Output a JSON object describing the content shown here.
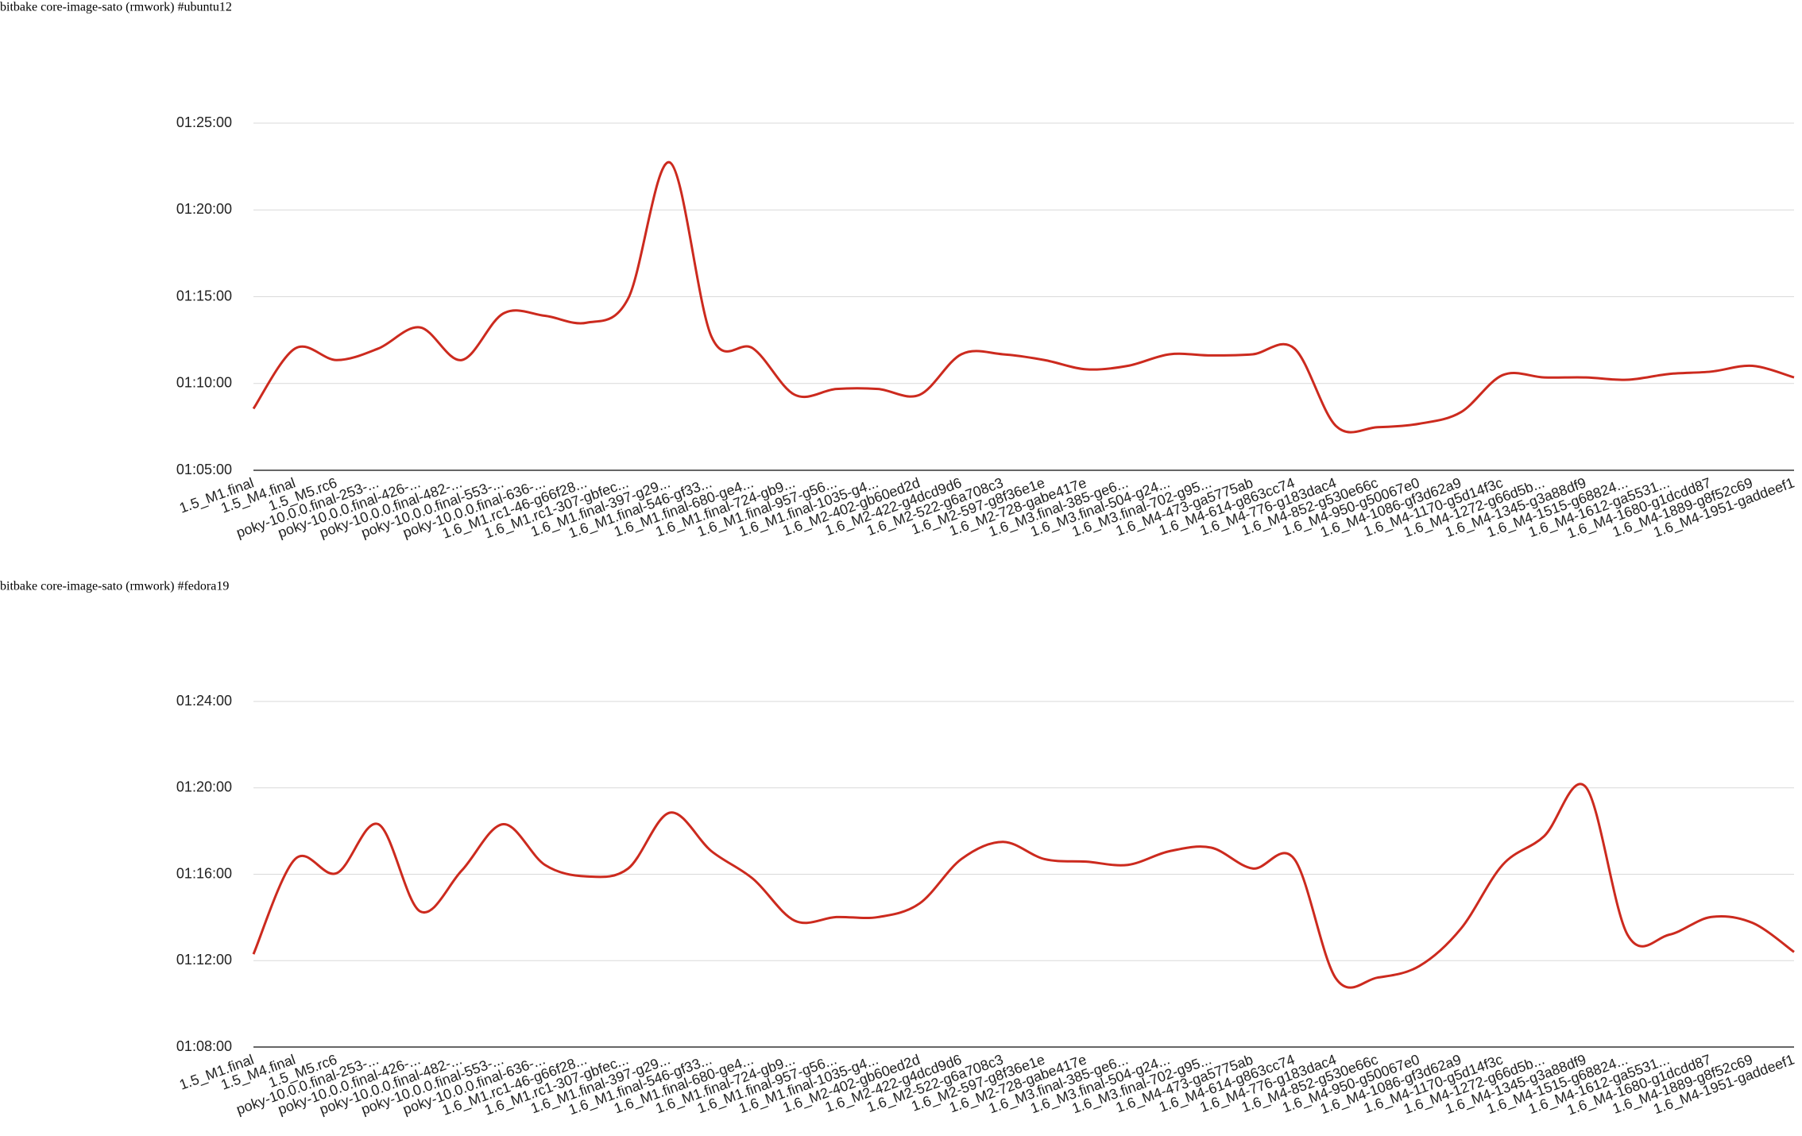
{
  "chart_data": [
    {
      "type": "line",
      "title": "bitbake core-image-sato (rmwork) #ubuntu12",
      "color": "#cc2a1e",
      "grid": true,
      "categories": [
        "1.5_M1.final",
        "1.5_M4.final",
        "1.5_M5.rc6",
        "poky-10.0.0.final-253-...",
        "poky-10.0.0.final-426-...",
        "poky-10.0.0.final-482-...",
        "poky-10.0.0.final-553-...",
        "poky-10.0.0.final-636-...",
        "1.6_M1.rc1-46-g66f28...",
        "1.6_M1.rc1-307-gbfec...",
        "1.6_M1.final-397-g29...",
        "1.6_M1.final-546-gf33...",
        "1.6_M1.final-680-ge4...",
        "1.6_M1.final-724-gb9...",
        "1.6_M1.final-957-g56...",
        "1.6_M1.final-1035-g4...",
        "1.6_M2-402-gb60ed2d",
        "1.6_M2-422-g4dcd9d6",
        "1.6_M2-522-g6a708c3",
        "1.6_M2-597-g8f36e1e",
        "1.6_M2-728-gabe417e",
        "1.6_M3.final-385-ge6...",
        "1.6_M3.final-504-g24...",
        "1.6_M3.final-702-g95...",
        "1.6_M4-473-ga5775ab",
        "1.6_M4-614-g863cc74",
        "1.6_M4-776-g183dac4",
        "1.6_M4-852-g530e66c",
        "1.6_M4-950-g50067e0",
        "1.6_M4-1086-gf3d62a9",
        "1.6_M4-1170-g5d14f3c",
        "1.6_M4-1272-g66d5b...",
        "1.6_M4-1345-g3a88df9",
        "1.6_M4-1515-g68824...",
        "1.6_M4-1612-ga5531...",
        "1.6_M4-1680-g1dcdd87",
        "1.6_M4-1889-g8f52c69",
        "1.6_M4-1951-gaddeef1"
      ],
      "values": [
        4113,
        4321,
        4281,
        4321,
        4394,
        4281,
        4442,
        4434,
        4410,
        4494,
        4964,
        4362,
        4321,
        4161,
        4181,
        4181,
        4161,
        4301,
        4301,
        4281,
        4249,
        4261,
        4301,
        4297,
        4301,
        4321,
        4053,
        4049,
        4061,
        4101,
        4229,
        4221,
        4221,
        4213,
        4233,
        4241,
        4261,
        4221
      ],
      "ylim": [
        3900,
        5100
      ],
      "yticks": [
        {
          "value": 3900,
          "label": "01:05:00"
        },
        {
          "value": 4200,
          "label": "01:10:00"
        },
        {
          "value": 4500,
          "label": "01:15:00"
        },
        {
          "value": 4800,
          "label": "01:20:00"
        },
        {
          "value": 5100,
          "label": "01:25:00"
        }
      ]
    },
    {
      "type": "line",
      "title": "bitbake core-image-sato (rmwork) #fedora19",
      "color": "#cc2a1e",
      "grid": true,
      "categories": [
        "1.5_M1.final",
        "1.5_M4.final",
        "1.5_M5.rc6",
        "poky-10.0.0.final-253-...",
        "poky-10.0.0.final-426-...",
        "poky-10.0.0.final-482-...",
        "poky-10.0.0.final-553-...",
        "poky-10.0.0.final-636-...",
        "1.6_M1.rc1-46-g66f28...",
        "1.6_M1.rc1-307-gbfec...",
        "1.6_M1.final-397-g29...",
        "1.6_M1.final-546-gf33...",
        "1.6_M1.final-680-ge4...",
        "1.6_M1.final-724-gb9...",
        "1.6_M1.final-957-g56...",
        "1.6_M1.final-1035-g4...",
        "1.6_M2-402-gb60ed2d",
        "1.6_M2-422-g4dcd9d6",
        "1.6_M2-522-g6a708c3",
        "1.6_M2-597-g8f36e1e",
        "1.6_M2-728-gabe417e",
        "1.6_M3.final-385-ge6...",
        "1.6_M3.final-504-g24...",
        "1.6_M3.final-702-g95...",
        "1.6_M4-473-ga5775ab",
        "1.6_M4-614-g863cc74",
        "1.6_M4-776-g183dac4",
        "1.6_M4-852-g530e66c",
        "1.6_M4-950-g50067e0",
        "1.6_M4-1086-gf3d62a9",
        "1.6_M4-1170-g5d14f3c",
        "1.6_M4-1272-g66d5b...",
        "1.6_M4-1345-g3a88df9",
        "1.6_M4-1515-g68824...",
        "1.6_M4-1612-ga5531...",
        "1.6_M4-1680-g1dcdd87",
        "1.6_M4-1889-g8f52c69",
        "1.6_M4-1951-gaddeef1"
      ],
      "values": [
        4338,
        4602,
        4563,
        4699,
        4457,
        4570,
        4699,
        4586,
        4554,
        4576,
        4731,
        4624,
        4547,
        4431,
        4441,
        4441,
        4479,
        4602,
        4650,
        4602,
        4595,
        4586,
        4624,
        4634,
        4576,
        4602,
        4270,
        4273,
        4305,
        4409,
        4586,
        4666,
        4802,
        4392,
        4392,
        4441,
        4425,
        4344
      ],
      "ylim": [
        4080,
        5040
      ],
      "yticks": [
        {
          "value": 4080,
          "label": "01:08:00"
        },
        {
          "value": 4320,
          "label": "01:12:00"
        },
        {
          "value": 4560,
          "label": "01:16:00"
        },
        {
          "value": 4800,
          "label": "01:20:00"
        },
        {
          "value": 5040,
          "label": "01:24:00"
        }
      ]
    }
  ]
}
